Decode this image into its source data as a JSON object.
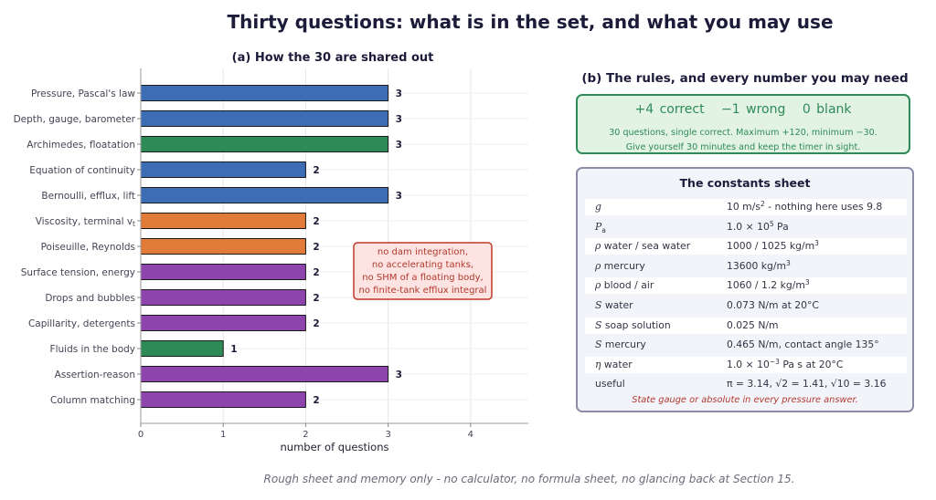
{
  "title": "Thirty questions: what is in the set, and what you may use",
  "chart_data": {
    "type": "bar",
    "orientation": "horizontal",
    "title": "(a) How the 30 are shared out",
    "xlabel": "number of questions",
    "ylabel": "",
    "xlim": [
      0,
      4.7
    ],
    "xticks": [
      0,
      1,
      2,
      3,
      4
    ],
    "grid": true,
    "categories": [
      "Pressure, Pascal's law",
      "Depth, gauge, barometer",
      "Archimedes, floatation",
      "Equation of continuity",
      "Bernoulli, efflux, lift",
      "Viscosity, terminal v",
      "Poiseuille, Reynolds",
      "Surface tension, energy",
      "Drops and bubbles",
      "Capillarity, detergents",
      "Fluids in the body",
      "Assertion-reason",
      "Column matching"
    ],
    "category_subscripts": [
      "",
      "",
      "",
      "",
      "",
      "t",
      "",
      "",
      "",
      "",
      "",
      "",
      ""
    ],
    "values": [
      3,
      3,
      3,
      2,
      3,
      2,
      2,
      2,
      2,
      2,
      1,
      3,
      2
    ],
    "bar_colors": [
      "#3d6db5",
      "#3d6db5",
      "#2e8b57",
      "#3d6db5",
      "#3d6db5",
      "#e07b39",
      "#e07b39",
      "#8e44ad",
      "#8e44ad",
      "#8e44ad",
      "#2e8b57",
      "#8e44ad",
      "#8e44ad"
    ],
    "annotation": [
      "no dam integration,",
      "no accelerating tanks,",
      "no SHM of a floating body,",
      "no finite-tank efflux integral"
    ],
    "annotation_colors": {
      "fill": "#fde3e1",
      "border": "#c0392b",
      "text": "#b03a2e"
    }
  },
  "rules_panel": {
    "title": "(b) The rules, and every number you may need",
    "scoring": [
      "+4 correct",
      "−1 wrong",
      "0 blank"
    ],
    "notes": [
      "30 questions, single correct.  Maximum +120, minimum −30.",
      "Give yourself 30 minutes and keep the timer in sight."
    ]
  },
  "constants": {
    "title": "The constants sheet",
    "rows": [
      {
        "sym": "g",
        "label": "",
        "value": "10 m/s",
        "sup": "2",
        "rest": " - nothing here uses 9.8"
      },
      {
        "sym": "P",
        "sub": "a",
        "label": "",
        "value": "1.0 × 10",
        "sup": "5",
        "rest": " Pa"
      },
      {
        "sym": "ρ",
        "label": " water / sea water",
        "value": "1000 / 1025 kg/m",
        "sup": "3",
        "rest": ""
      },
      {
        "sym": "ρ",
        "label": " mercury",
        "value": "13600 kg/m",
        "sup": "3",
        "rest": ""
      },
      {
        "sym": "ρ",
        "label": " blood / air",
        "value": "1060 / 1.2 kg/m",
        "sup": "3",
        "rest": ""
      },
      {
        "sym": "S",
        "label": " water",
        "value": "0.073 N/m at 20°C",
        "sup": "",
        "rest": ""
      },
      {
        "sym": "S",
        "label": " soap solution",
        "value": "0.025 N/m",
        "sup": "",
        "rest": ""
      },
      {
        "sym": "S",
        "label": " mercury",
        "value": "0.465 N/m, contact angle 135°",
        "sup": "",
        "rest": ""
      },
      {
        "sym": "η",
        "label": " water",
        "value": "1.0 × 10",
        "sup": "−3",
        "rest": " Pa s at 20°C"
      },
      {
        "sym": "",
        "label": "useful",
        "value": "π = 3.14,  √2 = 1.41,  √10 = 3.16",
        "sup": "",
        "rest": ""
      }
    ],
    "footer": "State gauge or absolute in every pressure answer."
  },
  "footer": "Rough sheet and memory only - no calculator, no formula sheet, no glancing back at Section 15."
}
